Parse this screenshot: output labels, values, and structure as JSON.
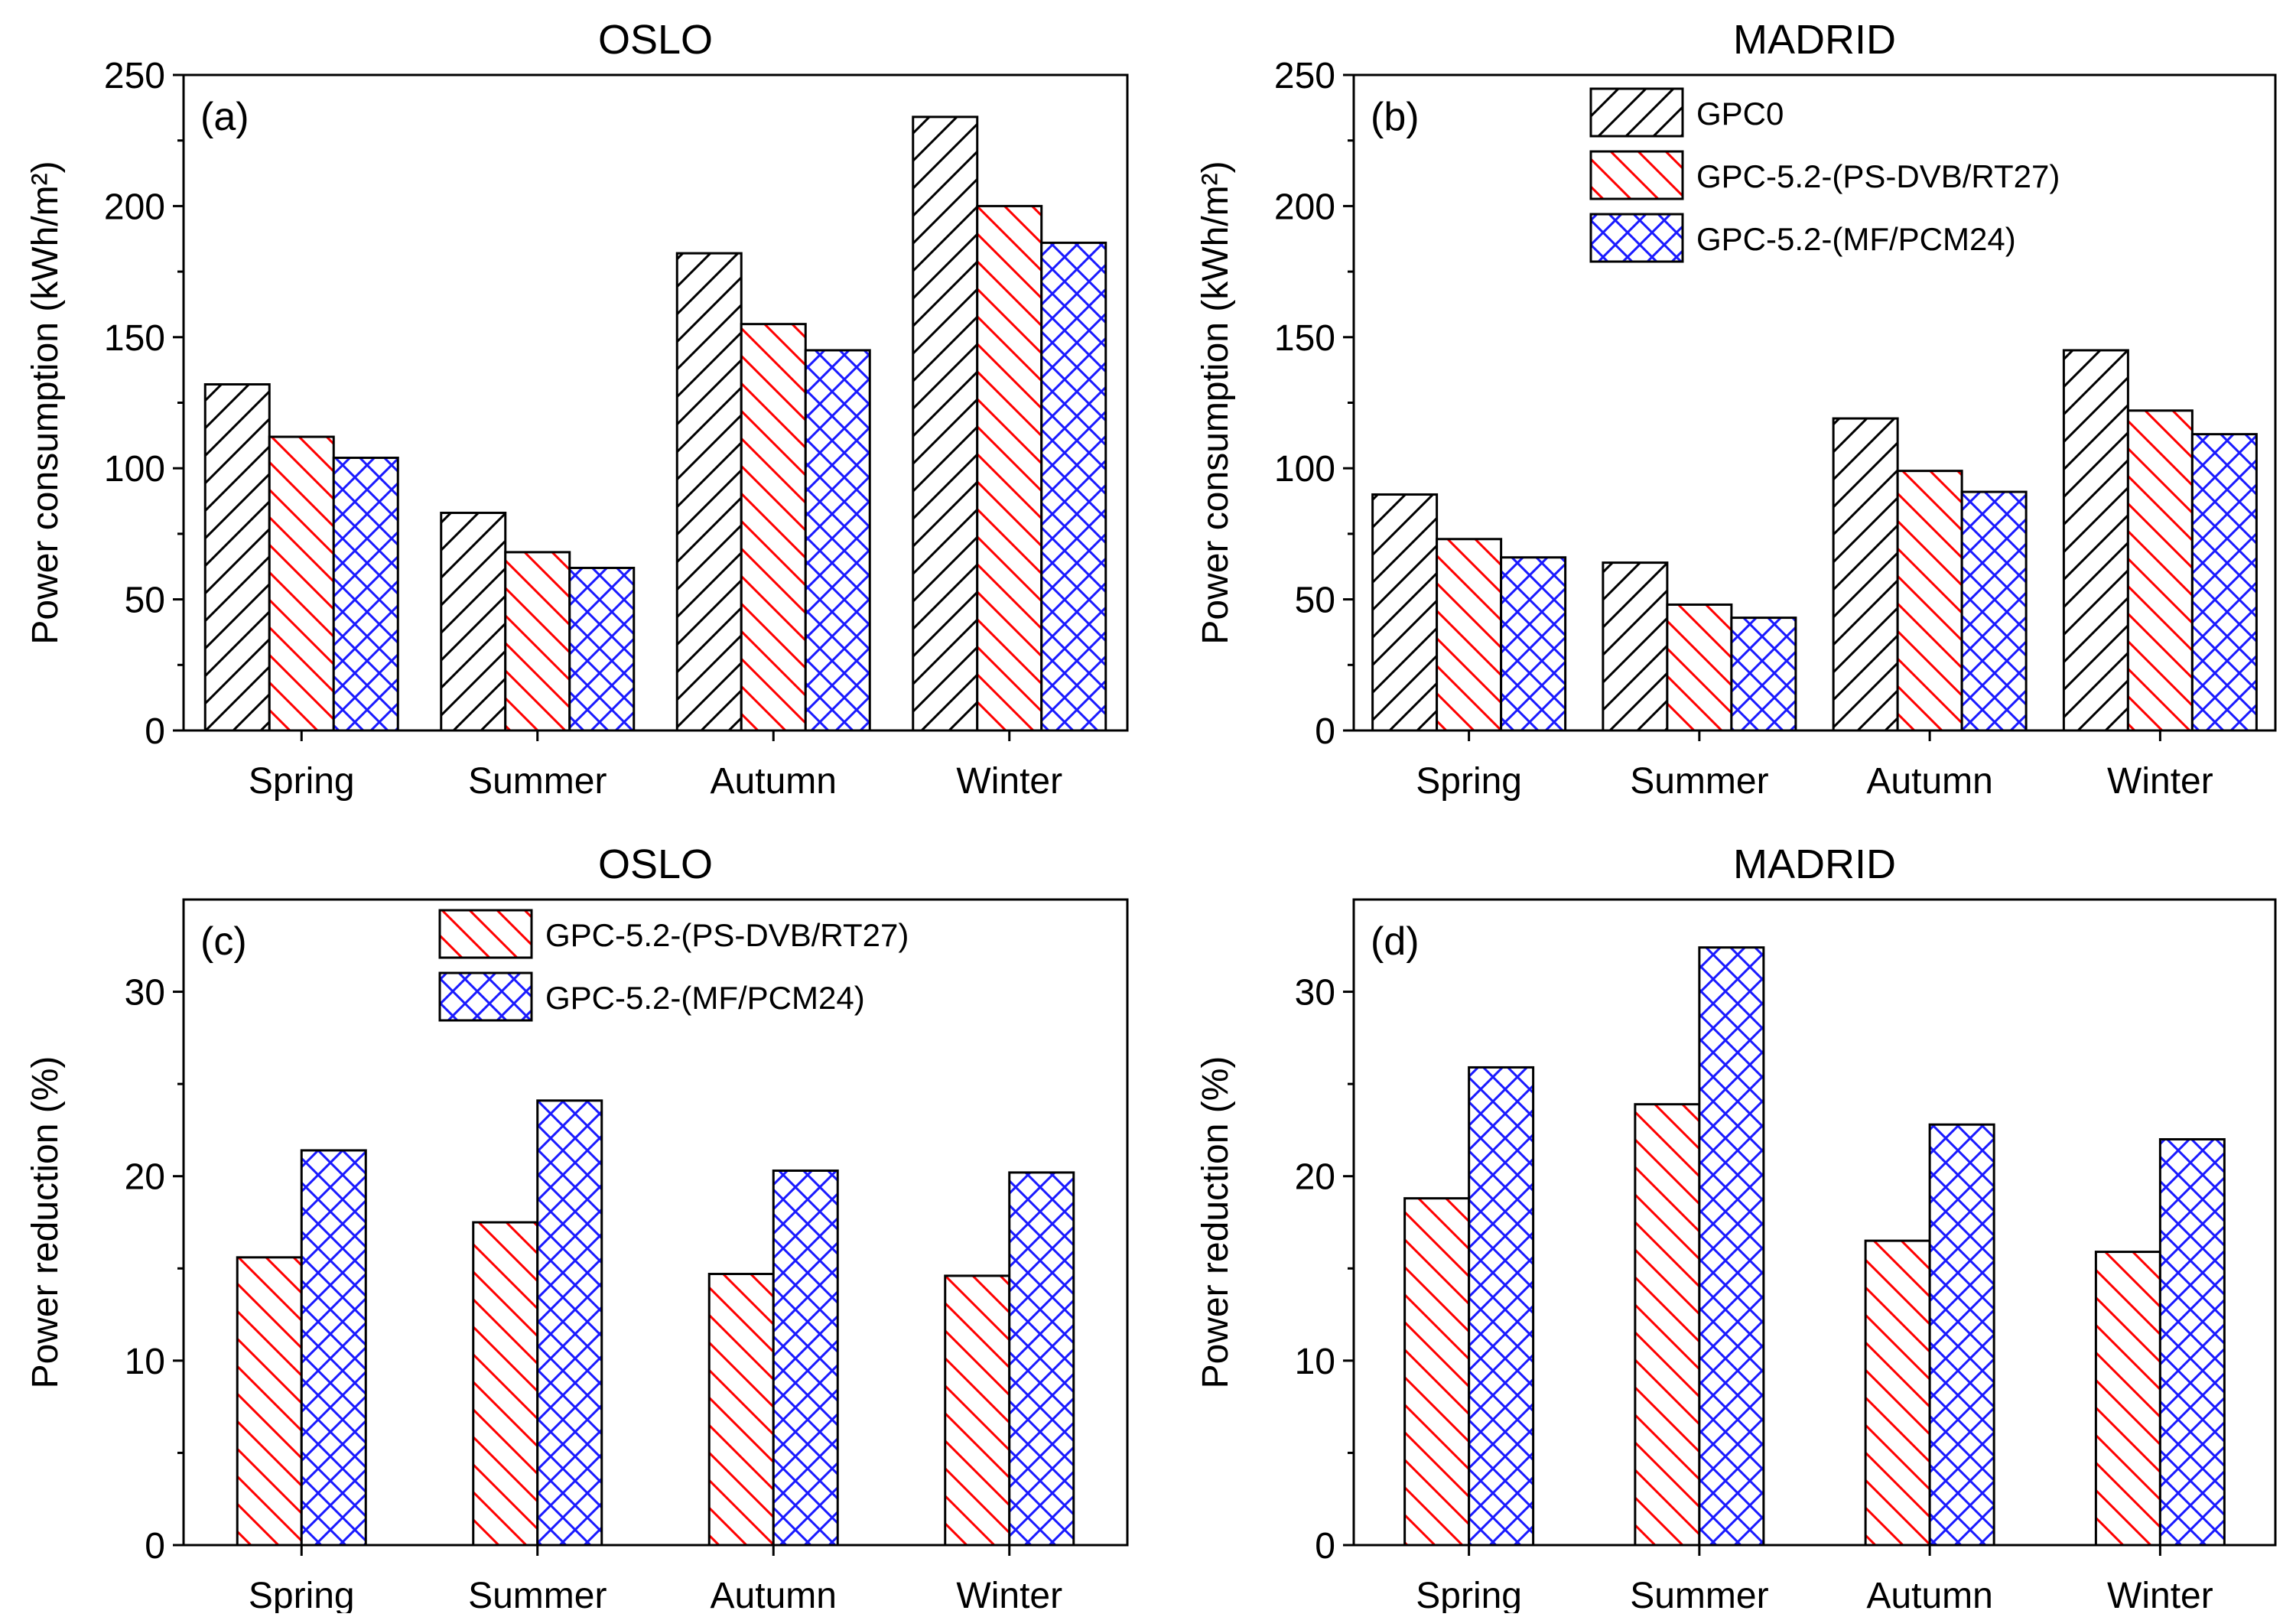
{
  "colors": {
    "black": "#000000",
    "red": "#ff0000",
    "blue": "#1a1aff",
    "white": "#ffffff"
  },
  "chart_data": [
    {
      "id": "a",
      "type": "bar",
      "title": "OSLO",
      "panel_label": "(a)",
      "xlabel": "",
      "ylabel": "Power consumption (kWh/m²)",
      "ylim": [
        0,
        250
      ],
      "yticks": [
        0,
        50,
        100,
        150,
        200,
        250
      ],
      "categories": [
        "Spring",
        "Summer",
        "Autumn",
        "Winter"
      ],
      "series": [
        {
          "name": "GPC0",
          "pattern": "black-hatch",
          "values": [
            132,
            83,
            182,
            234
          ]
        },
        {
          "name": "GPC-5.2-(PS-DVB/RT27)",
          "pattern": "red-hatch",
          "values": [
            112,
            68,
            155,
            200
          ]
        },
        {
          "name": "GPC-5.2-(MF/PCM24)",
          "pattern": "blue-cross",
          "values": [
            104,
            62,
            145,
            186
          ]
        }
      ],
      "legend": null
    },
    {
      "id": "b",
      "type": "bar",
      "title": "MADRID",
      "panel_label": "(b)",
      "xlabel": "",
      "ylabel": "Power consumption (kWh/m²)",
      "ylim": [
        0,
        250
      ],
      "yticks": [
        0,
        50,
        100,
        150,
        200,
        250
      ],
      "categories": [
        "Spring",
        "Summer",
        "Autumn",
        "Winter"
      ],
      "series": [
        {
          "name": "GPC0",
          "pattern": "black-hatch",
          "values": [
            90,
            64,
            119,
            145
          ]
        },
        {
          "name": "GPC-5.2-(PS-DVB/RT27)",
          "pattern": "red-hatch",
          "values": [
            73,
            48,
            99,
            122
          ]
        },
        {
          "name": "GPC-5.2-(MF/PCM24)",
          "pattern": "blue-cross",
          "values": [
            66,
            43,
            91,
            113
          ]
        }
      ],
      "legend": "top-right"
    },
    {
      "id": "c",
      "type": "bar",
      "title": "OSLO",
      "panel_label": "(c)",
      "xlabel": "",
      "ylabel": "Power reduction (%)",
      "ylim": [
        0,
        35
      ],
      "yticks": [
        0,
        10,
        20,
        30
      ],
      "categories": [
        "Spring",
        "Summer",
        "Autumn",
        "Winter"
      ],
      "series": [
        {
          "name": "GPC-5.2-(PS-DVB/RT27)",
          "pattern": "red-hatch",
          "values": [
            15.6,
            17.5,
            14.7,
            14.6
          ]
        },
        {
          "name": "GPC-5.2-(MF/PCM24)",
          "pattern": "blue-cross",
          "values": [
            21.4,
            24.1,
            20.3,
            20.2
          ]
        }
      ],
      "legend": "top-center"
    },
    {
      "id": "d",
      "type": "bar",
      "title": "MADRID",
      "panel_label": "(d)",
      "xlabel": "",
      "ylabel": "Power reduction (%)",
      "ylim": [
        0,
        35
      ],
      "yticks": [
        0,
        10,
        20,
        30
      ],
      "categories": [
        "Spring",
        "Summer",
        "Autumn",
        "Winter"
      ],
      "series": [
        {
          "name": "GPC-5.2-(PS-DVB/RT27)",
          "pattern": "red-hatch",
          "values": [
            18.8,
            23.9,
            16.5,
            15.9
          ]
        },
        {
          "name": "GPC-5.2-(MF/PCM24)",
          "pattern": "blue-cross",
          "values": [
            25.9,
            32.4,
            22.8,
            22.0
          ]
        }
      ],
      "legend": null
    }
  ]
}
